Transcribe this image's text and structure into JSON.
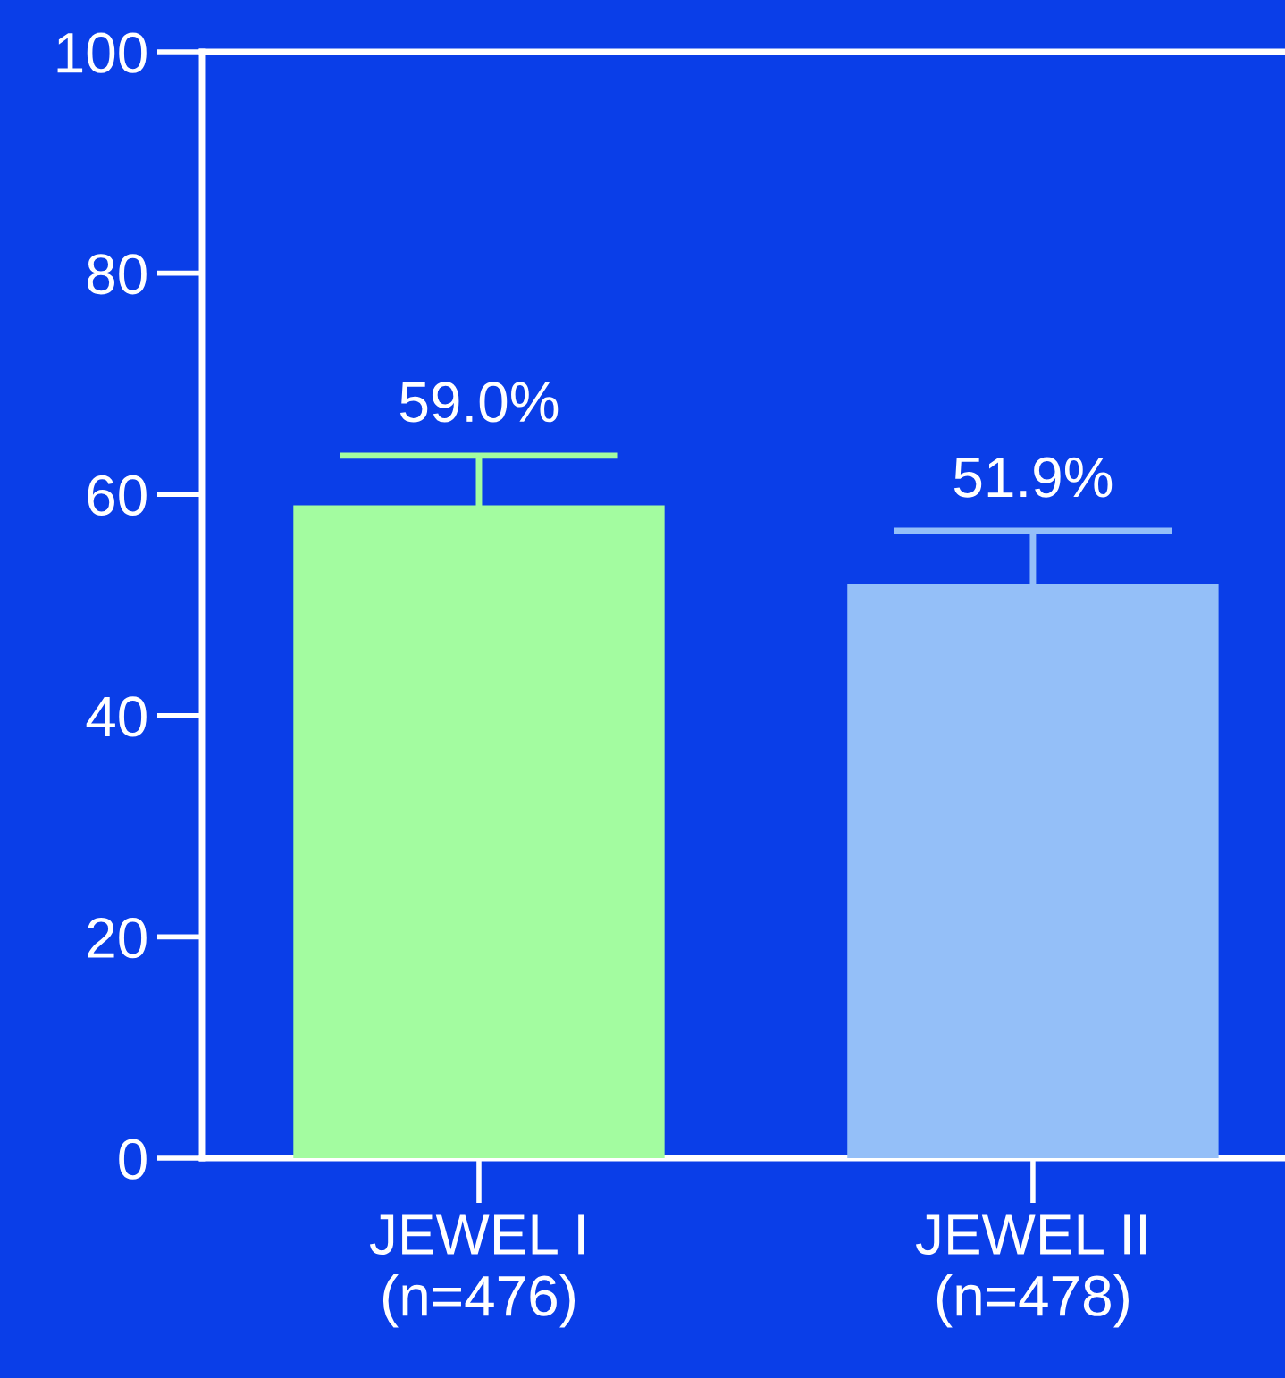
{
  "chart_data": {
    "type": "bar",
    "categories": [
      "JEWEL I\n(n=476)",
      "JEWEL II\n(n=478)"
    ],
    "values": [
      59.0,
      51.9
    ],
    "colors": [
      "#a3fca0",
      "#94bff8"
    ],
    "errors": [
      4.5,
      4.8
    ],
    "value_labels": [
      "59.0%",
      "51.9%"
    ],
    "ylim": [
      0,
      100
    ],
    "yticks": [
      0,
      20,
      40,
      60,
      80,
      100
    ],
    "grid": false
  }
}
